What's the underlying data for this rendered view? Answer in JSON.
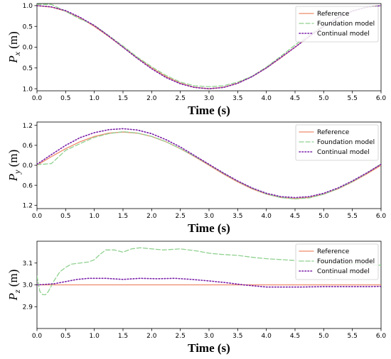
{
  "colors": {
    "reference": "#ee8a6a",
    "foundation": "#8fd18f",
    "continual": "#7a1fa8"
  },
  "chart_data": [
    {
      "type": "line",
      "ylabel": {
        "main": "P",
        "sub": "x",
        "unit": " (m)"
      },
      "xlabel": "Time (s)",
      "xlim": [
        0,
        6
      ],
      "ylim": [
        -1.05,
        1.05
      ],
      "xticks": [
        0.0,
        0.5,
        1.0,
        1.5,
        2.0,
        2.5,
        3.0,
        3.5,
        4.0,
        4.5,
        5.0,
        5.5,
        6.0
      ],
      "xtick_labels": [
        "0.0",
        "0.5",
        "1.0",
        "1.5",
        "2.0",
        "2.5",
        "3.0",
        "3.5",
        "4.0",
        "4.5",
        "5.0",
        "5.5",
        "6.0"
      ],
      "yticks": [
        1.0,
        0.5,
        0.0,
        -0.5,
        -1.0
      ],
      "ytick_labels": [
        "1.0",
        "0.5",
        "0.0",
        "0.5",
        "1.0"
      ],
      "legend": [
        "Reference",
        "Foundation model",
        "Continual model"
      ],
      "legend_position": "top-right",
      "series": [
        {
          "name": "Reference",
          "style": "solid",
          "color_key": "reference",
          "x": [
            0,
            0.25,
            0.5,
            0.75,
            1.0,
            1.25,
            1.5,
            1.75,
            2.0,
            2.25,
            2.5,
            2.75,
            3.0,
            3.25,
            3.5,
            3.75,
            4.0,
            4.25,
            4.5,
            4.75,
            5.0,
            5.25,
            5.5,
            5.75,
            6.0
          ],
          "y": [
            1.0,
            0.966,
            0.866,
            0.707,
            0.5,
            0.259,
            0.0,
            -0.259,
            -0.5,
            -0.707,
            -0.866,
            -0.966,
            -1.0,
            -0.966,
            -0.866,
            -0.707,
            -0.5,
            -0.259,
            0.0,
            0.259,
            0.5,
            0.707,
            0.866,
            0.966,
            1.0
          ]
        },
        {
          "name": "Foundation model",
          "style": "dashed",
          "color_key": "foundation",
          "x": [
            0,
            0.25,
            0.5,
            0.75,
            1.0,
            1.25,
            1.5,
            1.75,
            2.0,
            2.25,
            2.5,
            2.75,
            3.0,
            3.25,
            3.5,
            3.75,
            4.0,
            4.25,
            4.5,
            4.75,
            5.0,
            5.25,
            5.5,
            5.75,
            6.0
          ],
          "y": [
            1.03,
            1.03,
            0.86,
            0.68,
            0.53,
            0.28,
            0.03,
            -0.24,
            -0.47,
            -0.68,
            -0.84,
            -0.93,
            -0.95,
            -0.93,
            -0.84,
            -0.7,
            -0.48,
            -0.22,
            0.05,
            0.3,
            0.52,
            0.72,
            0.88,
            0.97,
            1.0
          ]
        },
        {
          "name": "Continual model",
          "style": "dotted",
          "color_key": "continual",
          "x": [
            0,
            0.25,
            0.5,
            0.75,
            1.0,
            1.25,
            1.5,
            1.75,
            2.0,
            2.25,
            2.5,
            2.75,
            3.0,
            3.25,
            3.5,
            3.75,
            4.0,
            4.25,
            4.5,
            4.75,
            5.0,
            5.25,
            5.5,
            5.75,
            6.0
          ],
          "y": [
            1.0,
            0.97,
            0.88,
            0.72,
            0.52,
            0.27,
            0.0,
            -0.27,
            -0.52,
            -0.73,
            -0.88,
            -0.97,
            -1.0,
            -0.97,
            -0.87,
            -0.71,
            -0.5,
            -0.25,
            0.0,
            0.26,
            0.5,
            0.71,
            0.87,
            0.96,
            1.0
          ]
        }
      ]
    },
    {
      "type": "line",
      "ylabel": {
        "main": "P",
        "sub": "y",
        "unit": " (m)"
      },
      "xlabel": "Time (s)",
      "xlim": [
        0,
        6
      ],
      "ylim": [
        -1.3,
        1.3
      ],
      "xticks": [
        0.0,
        0.5,
        1.0,
        1.5,
        2.0,
        2.5,
        3.0,
        3.5,
        4.0,
        4.5,
        5.0,
        5.5,
        6.0
      ],
      "xtick_labels": [
        "0.0",
        "0.5",
        "1.0",
        "1.5",
        "2.0",
        "2.5",
        "3.0",
        "3.5",
        "4.0",
        "4.5",
        "5.0",
        "5.5",
        "6.0"
      ],
      "yticks": [
        1.2,
        0.6,
        0.0,
        -0.6,
        -1.2
      ],
      "ytick_labels": [
        "1.2",
        "0.6",
        "0.0",
        "0.6",
        "1.2"
      ],
      "legend": [
        "Reference",
        "Foundation model",
        "Continual model"
      ],
      "legend_position": "top-right",
      "series": [
        {
          "name": "Reference",
          "style": "solid",
          "color_key": "reference",
          "x": [
            0,
            0.25,
            0.5,
            0.75,
            1.0,
            1.25,
            1.5,
            1.75,
            2.0,
            2.25,
            2.5,
            2.75,
            3.0,
            3.25,
            3.5,
            3.75,
            4.0,
            4.25,
            4.5,
            4.75,
            5.0,
            5.25,
            5.5,
            5.75,
            6.0
          ],
          "y": [
            0.0,
            0.26,
            0.5,
            0.707,
            0.866,
            0.966,
            1.0,
            0.966,
            0.866,
            0.707,
            0.5,
            0.259,
            0.0,
            -0.259,
            -0.5,
            -0.707,
            -0.866,
            -0.966,
            -1.0,
            -0.966,
            -0.866,
            -0.707,
            -0.5,
            -0.259,
            0.0
          ]
        },
        {
          "name": "Foundation model",
          "style": "dashed",
          "color_key": "foundation",
          "x": [
            0,
            0.25,
            0.5,
            0.75,
            1.0,
            1.25,
            1.5,
            1.75,
            2.0,
            2.25,
            2.5,
            2.75,
            3.0,
            3.25,
            3.5,
            3.75,
            4.0,
            4.25,
            4.5,
            4.75,
            5.0,
            5.25,
            5.5,
            5.75,
            6.0
          ],
          "y": [
            0.02,
            0.05,
            0.45,
            0.65,
            0.84,
            0.95,
            1.01,
            0.97,
            0.87,
            0.71,
            0.5,
            0.27,
            0.02,
            -0.24,
            -0.48,
            -0.69,
            -0.86,
            -0.97,
            -1.01,
            -0.98,
            -0.87,
            -0.7,
            -0.49,
            -0.24,
            0.04
          ]
        },
        {
          "name": "Continual model",
          "style": "dotted",
          "color_key": "continual",
          "x": [
            0,
            0.25,
            0.5,
            0.75,
            1.0,
            1.25,
            1.5,
            1.75,
            2.0,
            2.25,
            2.5,
            2.75,
            3.0,
            3.25,
            3.5,
            3.75,
            4.0,
            4.25,
            4.5,
            4.75,
            5.0,
            5.25,
            5.5,
            5.75,
            6.0
          ],
          "y": [
            0.03,
            0.32,
            0.6,
            0.83,
            0.98,
            1.07,
            1.1,
            1.06,
            0.95,
            0.77,
            0.55,
            0.29,
            0.03,
            -0.23,
            -0.47,
            -0.68,
            -0.84,
            -0.94,
            -0.97,
            -0.94,
            -0.84,
            -0.68,
            -0.47,
            -0.23,
            0.03
          ]
        }
      ]
    },
    {
      "type": "line",
      "ylabel": {
        "main": "P",
        "sub": "z",
        "unit": " (m)"
      },
      "xlabel": "Time (s)",
      "xlim": [
        0,
        6
      ],
      "ylim": [
        2.8,
        3.2
      ],
      "xticks": [
        0.0,
        0.5,
        1.0,
        1.5,
        2.0,
        2.5,
        3.0,
        3.5,
        4.0,
        4.5,
        5.0,
        5.5,
        6.0
      ],
      "xtick_labels": [
        "0.0",
        "0.5",
        "1.0",
        "1.5",
        "2.0",
        "2.5",
        "3.0",
        "3.5",
        "4.0",
        "4.5",
        "5.0",
        "5.5",
        "6.0"
      ],
      "yticks": [
        3.1,
        3.0,
        2.9
      ],
      "ytick_labels": [
        "3.1",
        "3.0",
        "2.9"
      ],
      "legend": [
        "Reference",
        "Foundation model",
        "Continual model"
      ],
      "legend_position": "top-right",
      "series": [
        {
          "name": "Reference",
          "style": "solid",
          "color_key": "reference",
          "x": [
            0,
            6.0
          ],
          "y": [
            3.0,
            3.0
          ]
        },
        {
          "name": "Foundation model",
          "style": "dashed",
          "color_key": "foundation",
          "x": [
            0,
            0.05,
            0.1,
            0.15,
            0.2,
            0.3,
            0.4,
            0.5,
            0.6,
            0.75,
            0.9,
            1.0,
            1.1,
            1.2,
            1.35,
            1.5,
            1.65,
            1.8,
            2.0,
            2.2,
            2.5,
            2.8,
            3.0,
            3.2,
            3.5,
            3.8,
            4.0,
            4.3,
            4.6,
            5.0,
            5.3,
            5.6,
            6.0
          ],
          "y": [
            3.04,
            2.97,
            2.955,
            2.955,
            2.97,
            3.02,
            3.06,
            3.08,
            3.095,
            3.1,
            3.105,
            3.115,
            3.14,
            3.16,
            3.16,
            3.15,
            3.165,
            3.17,
            3.165,
            3.16,
            3.165,
            3.155,
            3.145,
            3.14,
            3.135,
            3.125,
            3.12,
            3.115,
            3.11,
            3.105,
            3.1,
            3.095,
            3.09
          ]
        },
        {
          "name": "Continual model",
          "style": "dotted",
          "color_key": "continual",
          "x": [
            0,
            0.3,
            0.5,
            0.7,
            0.9,
            1.2,
            1.5,
            1.8,
            2.1,
            2.4,
            2.7,
            3.0,
            3.3,
            3.6,
            3.8,
            4.0,
            4.3,
            4.6,
            5.0,
            5.4,
            5.8,
            6.0
          ],
          "y": [
            3.0,
            3.005,
            3.015,
            3.025,
            3.03,
            3.03,
            3.025,
            3.03,
            3.028,
            3.03,
            3.025,
            3.018,
            3.01,
            3.0,
            2.995,
            2.99,
            2.99,
            2.99,
            2.992,
            2.992,
            2.992,
            2.993
          ]
        }
      ]
    }
  ]
}
